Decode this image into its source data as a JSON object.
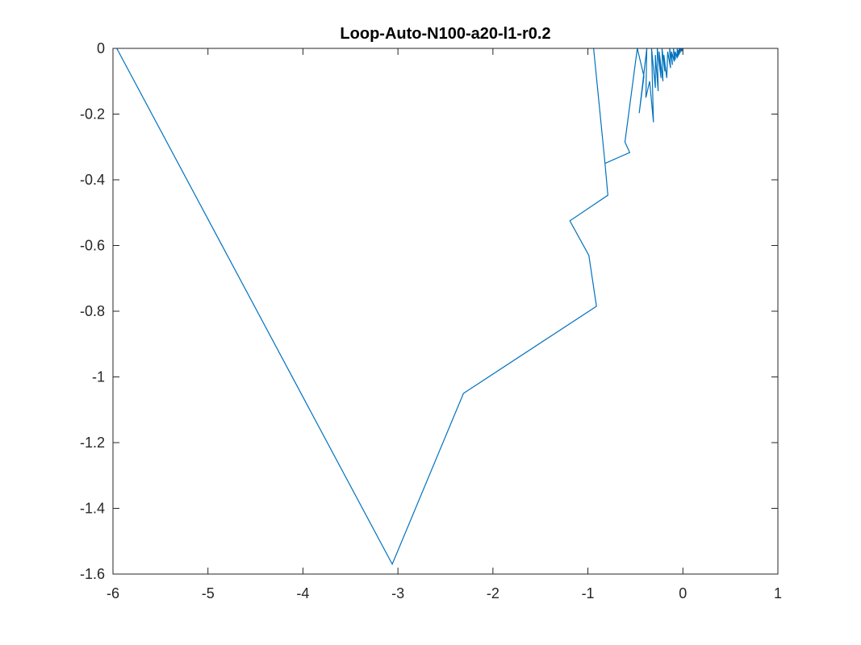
{
  "chart_data": {
    "type": "line",
    "title": "Loop-Auto-N100-a20-l1-r0.2",
    "xlabel": "",
    "ylabel": "",
    "xlim": [
      -6,
      1
    ],
    "ylim": [
      -1.6,
      0
    ],
    "xticks": [
      -6,
      -5,
      -4,
      -3,
      -2,
      -1,
      0,
      1
    ],
    "yticks": [
      0,
      -0.2,
      -0.4,
      -0.6,
      -0.8,
      -1,
      -1.2,
      -1.4,
      -1.6
    ],
    "xtick_labels": [
      "-6",
      "-5",
      "-4",
      "-3",
      "-2",
      "-1",
      "0",
      "1"
    ],
    "ytick_labels": [
      "0",
      "-0.2",
      "-0.4",
      "-0.6",
      "-0.8",
      "-1",
      "-1.2",
      "-1.4",
      "-1.6"
    ],
    "grid": false,
    "legend": "none",
    "line_color": "#0072BD",
    "series": [
      {
        "x": [
          -5.96,
          -3.06,
          -2.31,
          -0.91,
          -0.99,
          -1.19,
          -0.79,
          -0.82,
          -0.94,
          -0.82,
          -0.56,
          -0.61,
          -0.48,
          -0.41,
          -0.46,
          -0.38,
          -0.39,
          -0.35,
          -0.31,
          -0.33,
          -0.29,
          -0.29,
          -0.26,
          -0.27,
          -0.23,
          -0.25,
          -0.21,
          -0.22,
          -0.19,
          -0.2,
          -0.17,
          -0.16,
          -0.13,
          -0.14,
          -0.11,
          -0.12,
          -0.09,
          -0.1,
          -0.08,
          -0.08,
          -0.06,
          -0.06,
          -0.05,
          -0.05,
          -0.04,
          -0.04,
          -0.03,
          -0.03,
          -0.02,
          -0.02,
          -0.01,
          -0.01,
          -0.005,
          0.0,
          0.0
        ],
        "y": [
          0.0,
          -1.57,
          -1.05,
          -0.785,
          -0.63,
          -0.525,
          -0.447,
          -0.35,
          0.0,
          -0.35,
          -0.317,
          -0.285,
          0.0,
          -0.085,
          -0.197,
          0.0,
          -0.15,
          -0.1,
          -0.225,
          0.0,
          -0.12,
          -0.02,
          -0.13,
          0.0,
          -0.09,
          -0.01,
          -0.1,
          0.0,
          -0.07,
          -0.02,
          -0.09,
          -0.01,
          -0.06,
          0.0,
          -0.05,
          -0.01,
          -0.04,
          0.0,
          -0.035,
          -0.01,
          -0.03,
          0.0,
          -0.025,
          -0.005,
          -0.02,
          0.0,
          -0.015,
          0.0,
          -0.01,
          0.0,
          -0.008,
          0.0,
          -0.005,
          0.0,
          0.0
        ]
      }
    ]
  }
}
